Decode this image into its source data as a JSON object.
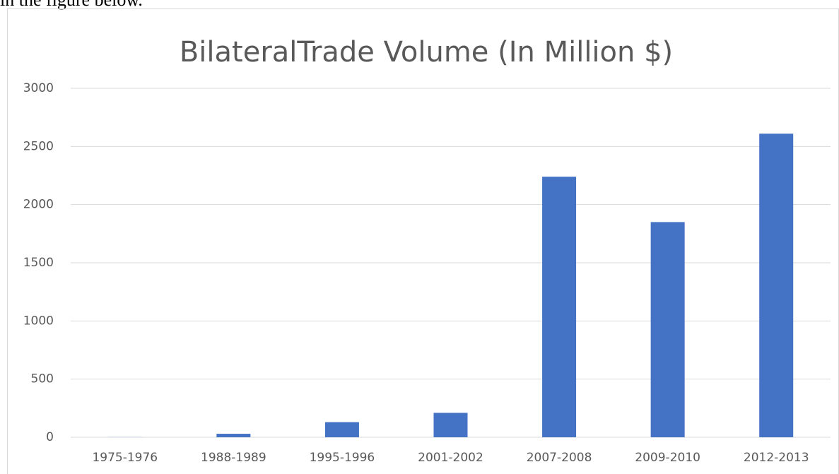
{
  "preceding_text": "in the figure below.",
  "chart_data": {
    "type": "bar",
    "title": "BilateralTrade Volume (In Million $)",
    "categories": [
      "1975-1976",
      "1988-1989",
      "1995-1996",
      "2001-2002",
      "2007-2008",
      "2009-2010",
      "2012-2013"
    ],
    "values": [
      1,
      30,
      130,
      210,
      2240,
      1850,
      2610
    ],
    "color": "#4472c4",
    "ylim": [
      0,
      3000
    ],
    "yticks": [
      0,
      500,
      1000,
      1500,
      2000,
      2500,
      3000
    ],
    "grid": true
  }
}
